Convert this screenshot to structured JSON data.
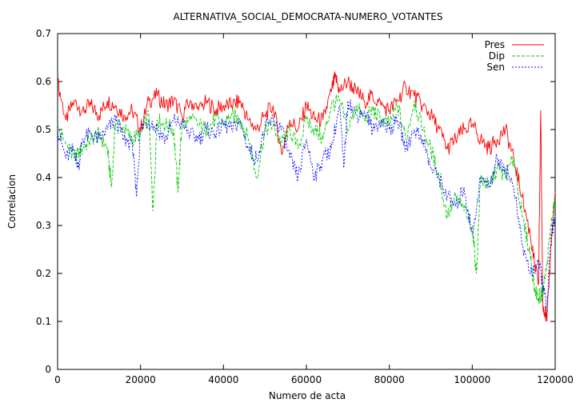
{
  "chart_data": {
    "type": "line",
    "title": "ALTERNATIVA_SOCIAL_DEMOCRATA-NUMERO_VOTANTES",
    "xlabel": "Numero de acta",
    "ylabel": "Correlacion",
    "xlim": [
      0,
      120000
    ],
    "ylim": [
      0,
      0.7
    ],
    "xticks": [
      0,
      20000,
      40000,
      60000,
      80000,
      100000,
      120000
    ],
    "yticks": [
      0,
      0.1,
      0.2,
      0.3,
      0.4,
      0.5,
      0.6,
      0.7
    ],
    "grid": false,
    "legend_position": "top-right",
    "series": [
      {
        "name": "Pres",
        "color": "#ff0000",
        "dash": "solid",
        "x": [
          0,
          2000,
          4000,
          6000,
          8000,
          10000,
          12000,
          14000,
          16000,
          18000,
          20000,
          22000,
          24000,
          26000,
          28000,
          30000,
          32000,
          34000,
          36000,
          38000,
          40000,
          42000,
          44000,
          46000,
          48000,
          50000,
          52000,
          54000,
          56000,
          58000,
          60000,
          62000,
          64000,
          66000,
          67000,
          68000,
          70000,
          72000,
          74000,
          76000,
          78000,
          80000,
          82000,
          84000,
          86000,
          88000,
          90000,
          92000,
          94000,
          96000,
          98000,
          100000,
          102000,
          104000,
          106000,
          108000,
          110000,
          112000,
          114000,
          115000,
          116000,
          116500,
          117000,
          118000,
          119000,
          120000
        ],
        "values": [
          0.6,
          0.52,
          0.56,
          0.54,
          0.55,
          0.53,
          0.56,
          0.55,
          0.53,
          0.54,
          0.5,
          0.56,
          0.57,
          0.55,
          0.56,
          0.53,
          0.56,
          0.54,
          0.56,
          0.54,
          0.55,
          0.55,
          0.56,
          0.52,
          0.5,
          0.53,
          0.55,
          0.45,
          0.52,
          0.5,
          0.55,
          0.52,
          0.52,
          0.58,
          0.61,
          0.58,
          0.6,
          0.58,
          0.56,
          0.57,
          0.55,
          0.54,
          0.56,
          0.59,
          0.57,
          0.55,
          0.53,
          0.5,
          0.46,
          0.48,
          0.5,
          0.51,
          0.48,
          0.46,
          0.48,
          0.5,
          0.44,
          0.36,
          0.28,
          0.22,
          0.18,
          0.54,
          0.14,
          0.1,
          0.26,
          0.37
        ]
      },
      {
        "name": "Dip",
        "color": "#00c800",
        "dash": "4,2",
        "x": [
          0,
          2000,
          4000,
          6000,
          8000,
          10000,
          12000,
          13000,
          14000,
          16000,
          18000,
          20000,
          22000,
          23000,
          24000,
          26000,
          28000,
          29000,
          30000,
          32000,
          34000,
          36000,
          38000,
          40000,
          42000,
          44000,
          46000,
          48000,
          50000,
          52000,
          54000,
          56000,
          58000,
          60000,
          62000,
          64000,
          66000,
          68000,
          70000,
          72000,
          74000,
          76000,
          78000,
          80000,
          82000,
          84000,
          86000,
          88000,
          90000,
          92000,
          94000,
          96000,
          98000,
          100000,
          101000,
          102000,
          104000,
          106000,
          108000,
          110000,
          112000,
          114000,
          115000,
          116000,
          117000,
          118000,
          119000,
          120000
        ],
        "values": [
          0.5,
          0.47,
          0.44,
          0.46,
          0.48,
          0.49,
          0.46,
          0.38,
          0.52,
          0.5,
          0.48,
          0.49,
          0.53,
          0.33,
          0.52,
          0.51,
          0.5,
          0.37,
          0.51,
          0.52,
          0.51,
          0.5,
          0.52,
          0.51,
          0.53,
          0.52,
          0.48,
          0.4,
          0.5,
          0.51,
          0.47,
          0.5,
          0.46,
          0.52,
          0.5,
          0.48,
          0.55,
          0.56,
          0.5,
          0.55,
          0.52,
          0.54,
          0.52,
          0.51,
          0.55,
          0.48,
          0.56,
          0.5,
          0.46,
          0.4,
          0.32,
          0.36,
          0.33,
          0.3,
          0.2,
          0.4,
          0.38,
          0.42,
          0.4,
          0.44,
          0.32,
          0.24,
          0.17,
          0.15,
          0.16,
          0.22,
          0.3,
          0.36
        ]
      },
      {
        "name": "Sen",
        "color": "#0000ff",
        "dash": "2,2",
        "x": [
          0,
          2000,
          4000,
          5000,
          6000,
          8000,
          10000,
          12000,
          14000,
          16000,
          18000,
          19000,
          20000,
          22000,
          24000,
          26000,
          28000,
          30000,
          32000,
          34000,
          36000,
          38000,
          40000,
          42000,
          44000,
          46000,
          48000,
          50000,
          52000,
          54000,
          56000,
          58000,
          60000,
          62000,
          64000,
          66000,
          68000,
          69000,
          70000,
          72000,
          74000,
          76000,
          78000,
          80000,
          82000,
          84000,
          86000,
          88000,
          90000,
          92000,
          94000,
          96000,
          98000,
          100000,
          102000,
          104000,
          106000,
          108000,
          110000,
          112000,
          114000,
          116000,
          117000,
          118000,
          119000,
          120000
        ],
        "values": [
          0.5,
          0.44,
          0.46,
          0.42,
          0.48,
          0.49,
          0.48,
          0.5,
          0.52,
          0.48,
          0.47,
          0.36,
          0.5,
          0.52,
          0.5,
          0.48,
          0.52,
          0.51,
          0.49,
          0.48,
          0.5,
          0.49,
          0.51,
          0.5,
          0.52,
          0.46,
          0.44,
          0.5,
          0.52,
          0.5,
          0.44,
          0.4,
          0.48,
          0.4,
          0.44,
          0.46,
          0.55,
          0.42,
          0.56,
          0.53,
          0.54,
          0.5,
          0.52,
          0.5,
          0.52,
          0.46,
          0.5,
          0.48,
          0.42,
          0.4,
          0.36,
          0.34,
          0.38,
          0.28,
          0.4,
          0.38,
          0.44,
          0.42,
          0.38,
          0.26,
          0.2,
          0.22,
          0.18,
          0.12,
          0.28,
          0.32
        ]
      }
    ]
  }
}
